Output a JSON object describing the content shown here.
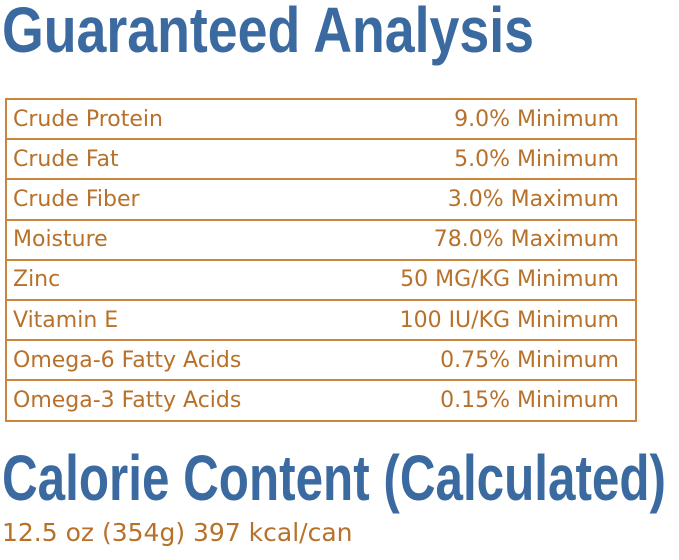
{
  "header": {
    "title": "Guaranteed Analysis"
  },
  "table": {
    "rows": [
      [
        "Crude Protein",
        "9.0% Minimum"
      ],
      [
        "Crude Fat",
        "5.0% Minimum"
      ],
      [
        "Crude Fiber",
        "3.0% Maximum"
      ],
      [
        "Moisture",
        "78.0% Maximum"
      ],
      [
        "Zinc",
        "50 MG/KG Minimum"
      ],
      [
        "Vitamin E",
        "100 IU/KG Minimum"
      ],
      [
        "Omega-6 Fatty Acids",
        "0.75% Minimum"
      ],
      [
        "Omega-3 Fatty Acids",
        "0.15% Minimum"
      ]
    ]
  },
  "calorie": {
    "title": "Calorie Content (Calculated)",
    "text": "12.5 oz (354g) 397 kcal/can"
  }
}
